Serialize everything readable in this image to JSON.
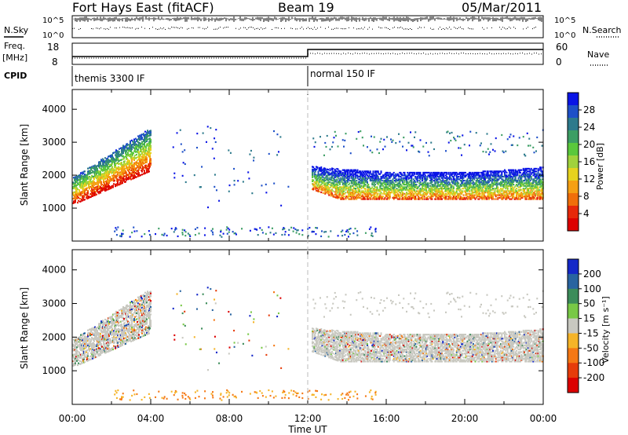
{
  "header": {
    "station": "Fort Hays East (fitACF)",
    "beam": "Beam 19",
    "date": "05/Mar/2011"
  },
  "top_panels": {
    "nsky_label": "N.Sky",
    "nsearch_label": "N.Search",
    "nsky_ticks": [
      "10^5",
      "10^0"
    ],
    "nsearch_ticks": [
      "10^5",
      "10^0"
    ],
    "freq_label_1": "Freq.",
    "freq_label_2": "[MHz]",
    "freq_ticks": [
      "18",
      "8"
    ],
    "nave_label": "Nave",
    "nave_ticks": [
      "60",
      "0"
    ],
    "cpid_label": "CPID",
    "cpid_segments": [
      {
        "label": "themis 3300 IF",
        "start_hour": 0
      },
      {
        "label": "normal 150 IF",
        "start_hour": 12
      }
    ]
  },
  "chart_data": [
    {
      "type": "heatmap",
      "title": "Power",
      "ylabel": "Slant Range [km]",
      "xlabel": "",
      "ylim": [
        0,
        4600
      ],
      "xlim_hours": [
        0,
        24
      ],
      "y_ticks": [
        1000,
        2000,
        3000,
        4000
      ],
      "colorbar_label": "Power [dB]",
      "colorbar_ticks": [
        "28",
        "24",
        "20",
        "16",
        "12",
        "8",
        "4"
      ],
      "colorscale": [
        "#0a14e6",
        "#1e50c8",
        "#2d7a8c",
        "#3c9e64",
        "#5ac83c",
        "#a0d23c",
        "#e6d21e",
        "#f5a014",
        "#f06e0a",
        "#e6280a",
        "#dc0000"
      ],
      "scatter_bands": [
        {
          "t_start": 0.0,
          "t_end": 4.0,
          "range_low": 1100,
          "range_high": 3500,
          "description_hint": "echo band rising from 1200 km to 3400 km"
        },
        {
          "t_start": 12.0,
          "t_end": 24.0,
          "range_low": 1200,
          "range_high": 3400,
          "description_hint": "band near 1400-2200 km"
        }
      ]
    },
    {
      "type": "heatmap",
      "title": "Velocity",
      "ylabel": "Slant Range [km]",
      "xlabel": "Time UT",
      "ylim": [
        0,
        4600
      ],
      "xlim_hours": [
        0,
        24
      ],
      "y_ticks": [
        1000,
        2000,
        3000,
        4000
      ],
      "x_ticks": [
        "00:00",
        "04:00",
        "08:00",
        "12:00",
        "16:00",
        "20:00",
        "00:00"
      ],
      "colorbar_label": "Velocity [m s⁻¹]",
      "colorbar_ticks": [
        "200",
        "100",
        "50",
        "15",
        "-15",
        "-50",
        "-100",
        "-200"
      ],
      "colorscale": [
        "#1428c8",
        "#2864a0",
        "#3c8c5a",
        "#78c846",
        "#c8c8c0",
        "#f5b428",
        "#f57814",
        "#e63c0a",
        "#dc0000"
      ]
    }
  ]
}
